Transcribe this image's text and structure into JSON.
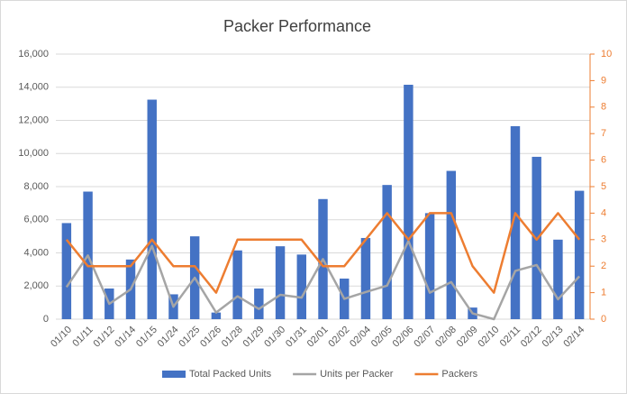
{
  "chart_data": {
    "type": "bar-line",
    "title": "Packer Performance",
    "categories": [
      "01/10",
      "01/11",
      "01/12",
      "01/14",
      "01/15",
      "01/24",
      "01/25",
      "01/26",
      "01/28",
      "01/29",
      "01/30",
      "01/31",
      "02/01",
      "02/02",
      "02/04",
      "02/05",
      "02/06",
      "02/07",
      "02/08",
      "02/09",
      "02/10",
      "02/11",
      "02/12",
      "02/13",
      "02/14"
    ],
    "series": [
      {
        "name": "Total Packed Units",
        "type": "bar",
        "color": "#4472c4",
        "values": [
          5800,
          7700,
          1850,
          3600,
          13250,
          1500,
          5000,
          400,
          4150,
          1850,
          4400,
          3900,
          7250,
          2450,
          4900,
          8100,
          14150,
          6400,
          8950,
          700,
          0,
          11650,
          9800,
          4800,
          7750
        ]
      },
      {
        "name": "Units per Packer",
        "type": "line",
        "color": "#a5a5a5",
        "values": [
          1933,
          3850,
          925,
          1800,
          4417,
          750,
          2500,
          400,
          1383,
          617,
          1467,
          1300,
          3625,
          1225,
          1633,
          2025,
          4717,
          1600,
          2238,
          350,
          0,
          2913,
          3267,
          1200,
          2583
        ]
      },
      {
        "name": "Packers",
        "type": "line",
        "axis": "y2",
        "color": "#ed7d31",
        "values": [
          3,
          2,
          2,
          2,
          3,
          2,
          2,
          1,
          3,
          3,
          3,
          3,
          2,
          2,
          3,
          4,
          3,
          4,
          4,
          2,
          1,
          4,
          3,
          4,
          3
        ]
      }
    ],
    "ylim": [
      0,
      16000
    ],
    "yticks": [
      0,
      {
        "value": 2000,
        "label": "2,000"
      },
      {
        "value": 4000,
        "label": "4,000"
      },
      {
        "value": 6000,
        "label": "6,000"
      },
      {
        "value": 8000,
        "label": "8,000"
      },
      {
        "value": 10000,
        "label": "10,000"
      },
      {
        "value": 12000,
        "label": "12,000"
      },
      {
        "value": 14000,
        "label": "14,000"
      },
      {
        "value": 16000,
        "label": "16,000"
      }
    ],
    "y2lim": [
      0,
      10
    ],
    "y2ticks": [
      0,
      1,
      2,
      3,
      4,
      5,
      6,
      7,
      8,
      9,
      10
    ],
    "y2color": "#ed7d31",
    "grid": true,
    "legend": "bottom"
  }
}
